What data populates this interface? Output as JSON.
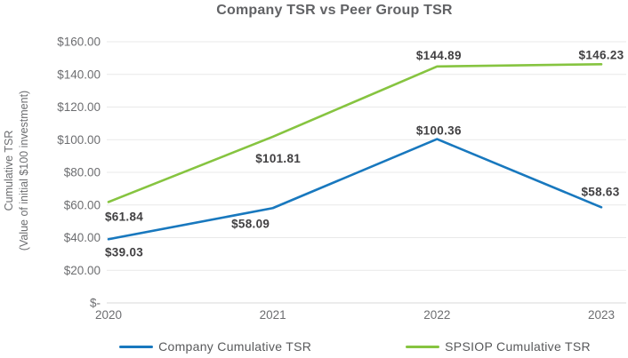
{
  "title": "Company TSR vs Peer Group TSR",
  "chart_data": {
    "type": "line",
    "title": "Company TSR vs Peer Group TSR",
    "x": [
      "2020",
      "2021",
      "2022",
      "2023"
    ],
    "series": [
      {
        "name": "Company Cumulative TSR",
        "color": "#1878be",
        "values": [
          39.03,
          58.09,
          100.36,
          58.63
        ],
        "point_labels": [
          "$39.03",
          "$58.09",
          "$100.36",
          "$58.63"
        ]
      },
      {
        "name": "SPSIOP Cumulative TSR",
        "color": "#86c440",
        "values": [
          61.84,
          101.81,
          144.89,
          146.23
        ],
        "point_labels": [
          "$61.84",
          "$101.81",
          "$144.89",
          "$146.23"
        ]
      }
    ],
    "ylabel": [
      "Cumulative TSR",
      "(Value of initial $100 investment)"
    ],
    "yticks": [
      {
        "value": 160,
        "label": "$160.00"
      },
      {
        "value": 140,
        "label": "$140.00"
      },
      {
        "value": 120,
        "label": "$120.00"
      },
      {
        "value": 100,
        "label": "$100.00"
      },
      {
        "value": 80,
        "label": "$80.00"
      },
      {
        "value": 60,
        "label": "$60.00"
      },
      {
        "value": 40,
        "label": "$40.00"
      },
      {
        "value": 20,
        "label": "$20.00"
      },
      {
        "value": 0,
        "label": "$-"
      }
    ],
    "ylim": [
      0,
      160
    ],
    "grid": true,
    "legend_position": "bottom"
  },
  "colors": {
    "title_text": "#616265",
    "axis_text": "#6d6e71",
    "data_label_text": "#414042",
    "gridline": "#e9e9e9",
    "baseline": "#d8d8d8",
    "background": "#ffffff"
  }
}
